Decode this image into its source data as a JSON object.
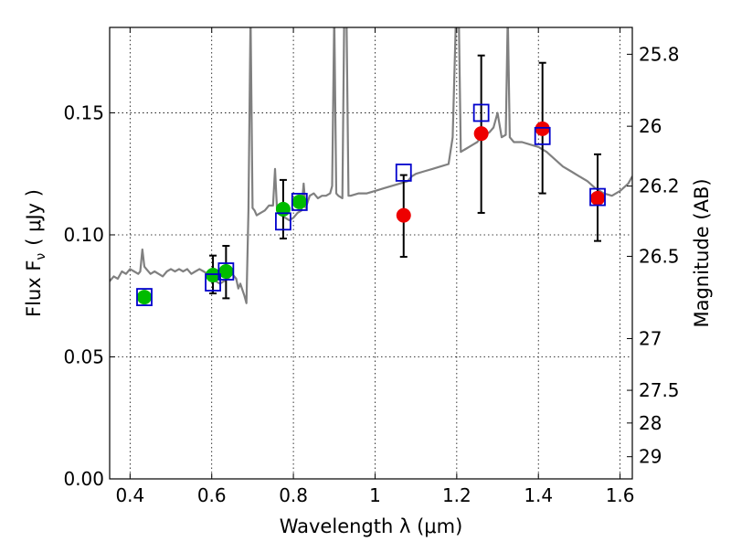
{
  "chart_data": {
    "type": "scatter",
    "title": "",
    "xlabel": "Wavelength  λ (μm)",
    "ylabel": "Flux  F",
    "ylabel_sub": "ν",
    "ylabel_unit": "( μJy )",
    "y2label": "Magnitude (AB)",
    "xlim": [
      0.35,
      1.63
    ],
    "ylim": [
      0.0,
      0.185
    ],
    "grid": true,
    "x_ticks": [
      0.4,
      0.6,
      0.8,
      1.0,
      1.2,
      1.4,
      1.6
    ],
    "x_tick_labels": [
      "0.4",
      "0.6",
      "0.8",
      "1",
      "1.2",
      "1.4",
      "1.6"
    ],
    "y_ticks": [
      0.0,
      0.05,
      0.1,
      0.15
    ],
    "y_tick_labels": [
      "0.00",
      "0.05",
      "0.10",
      "0.15"
    ],
    "y2_ticks": [
      {
        "label": "25.8",
        "flux": 0.174
      },
      {
        "label": "26",
        "flux": 0.1445
      },
      {
        "label": "26.2",
        "flux": 0.12
      },
      {
        "label": "26.5",
        "flux": 0.0912
      },
      {
        "label": "27",
        "flux": 0.0575
      },
      {
        "label": "27.5",
        "flux": 0.0363
      },
      {
        "label": "28",
        "flux": 0.0229
      },
      {
        "label": "29",
        "flux": 0.0091
      }
    ],
    "colors": {
      "model_line": "#808080",
      "model_points": "#0000cc",
      "green_points": "#00bb00",
      "red_points": "#ee0000",
      "errorbar": "#000000"
    },
    "series": [
      {
        "kind": "model_spectrum",
        "x": [
          0.35,
          0.36,
          0.37,
          0.38,
          0.39,
          0.4,
          0.41,
          0.42,
          0.425,
          0.43,
          0.435,
          0.44,
          0.45,
          0.46,
          0.47,
          0.48,
          0.49,
          0.5,
          0.51,
          0.52,
          0.53,
          0.54,
          0.55,
          0.56,
          0.57,
          0.58,
          0.59,
          0.6,
          0.61,
          0.62,
          0.63,
          0.64,
          0.65,
          0.66,
          0.665,
          0.67,
          0.68,
          0.685,
          0.69,
          0.695,
          0.7,
          0.705,
          0.71,
          0.72,
          0.73,
          0.74,
          0.75,
          0.755,
          0.76,
          0.77,
          0.78,
          0.79,
          0.8,
          0.81,
          0.82,
          0.825,
          0.83,
          0.84,
          0.85,
          0.86,
          0.87,
          0.88,
          0.89,
          0.895,
          0.9,
          0.905,
          0.91,
          0.92,
          0.925,
          0.93,
          0.935,
          0.94,
          0.96,
          0.98,
          1.0,
          1.02,
          1.04,
          1.06,
          1.08,
          1.09,
          1.1,
          1.12,
          1.14,
          1.16,
          1.18,
          1.19,
          1.2,
          1.205,
          1.21,
          1.22,
          1.23,
          1.24,
          1.25,
          1.26,
          1.27,
          1.28,
          1.29,
          1.3,
          1.31,
          1.32,
          1.325,
          1.33,
          1.34,
          1.36,
          1.38,
          1.4,
          1.42,
          1.44,
          1.46,
          1.48,
          1.5,
          1.52,
          1.54,
          1.56,
          1.58,
          1.6,
          1.62,
          1.63
        ],
        "y": [
          0.081,
          0.083,
          0.082,
          0.085,
          0.084,
          0.086,
          0.085,
          0.084,
          0.085,
          0.094,
          0.087,
          0.086,
          0.084,
          0.085,
          0.084,
          0.083,
          0.085,
          0.086,
          0.085,
          0.086,
          0.085,
          0.086,
          0.084,
          0.085,
          0.086,
          0.085,
          0.084,
          0.082,
          0.081,
          0.08,
          0.081,
          0.082,
          0.084,
          0.082,
          0.078,
          0.08,
          0.075,
          0.072,
          0.11,
          0.19,
          0.111,
          0.11,
          0.108,
          0.109,
          0.11,
          0.112,
          0.112,
          0.127,
          0.11,
          0.108,
          0.107,
          0.106,
          0.107,
          0.109,
          0.11,
          0.121,
          0.111,
          0.116,
          0.117,
          0.115,
          0.116,
          0.116,
          0.117,
          0.12,
          0.19,
          0.117,
          0.116,
          0.115,
          0.2,
          0.19,
          0.116,
          0.116,
          0.117,
          0.117,
          0.118,
          0.119,
          0.12,
          0.121,
          0.122,
          0.124,
          0.125,
          0.126,
          0.127,
          0.128,
          0.129,
          0.14,
          0.2,
          0.19,
          0.134,
          0.135,
          0.136,
          0.137,
          0.138,
          0.14,
          0.141,
          0.142,
          0.144,
          0.15,
          0.14,
          0.141,
          0.19,
          0.14,
          0.138,
          0.138,
          0.137,
          0.136,
          0.134,
          0.131,
          0.128,
          0.126,
          0.124,
          0.122,
          0.119,
          0.117,
          0.116,
          0.118,
          0.121,
          0.124
        ]
      },
      {
        "kind": "model_photometry",
        "marker": "open-square",
        "x": [
          0.435,
          0.603,
          0.635,
          0.775,
          0.815,
          1.07,
          1.26,
          1.41,
          1.545
        ],
        "y": [
          0.0745,
          0.0805,
          0.085,
          0.1055,
          0.1135,
          0.1255,
          0.15,
          0.1405,
          0.1155
        ]
      },
      {
        "kind": "observed",
        "marker": "filled-circle",
        "color": "green",
        "x": [
          0.435,
          0.603,
          0.635,
          0.775,
          0.815
        ],
        "y": [
          0.0745,
          0.0835,
          0.085,
          0.1105,
          0.1135
        ],
        "yerr_low": [
          null,
          0.0075,
          0.011,
          0.012,
          null
        ],
        "yerr_high": [
          null,
          0.008,
          0.0105,
          0.012,
          null
        ]
      },
      {
        "kind": "observed",
        "marker": "filled-circle",
        "color": "red",
        "x": [
          1.07,
          1.26,
          1.41,
          1.545
        ],
        "y": [
          0.108,
          0.1415,
          0.1435,
          0.115
        ],
        "yerr_low": [
          0.017,
          0.0325,
          0.0265,
          0.0175
        ],
        "yerr_high": [
          0.0165,
          0.032,
          0.027,
          0.018
        ]
      }
    ]
  }
}
